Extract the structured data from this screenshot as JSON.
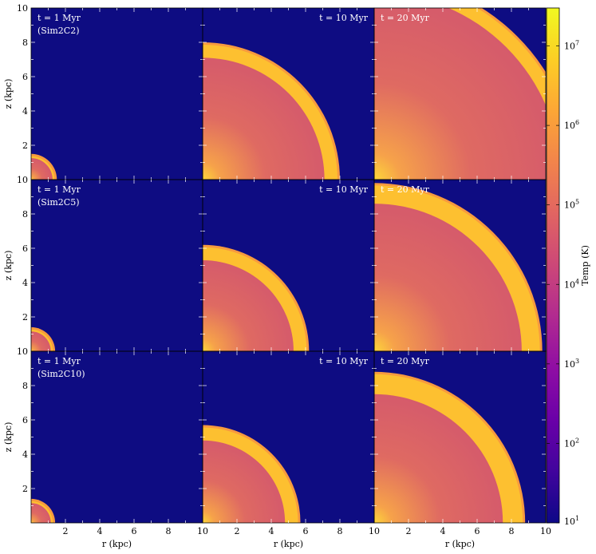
{
  "chart_data": {
    "type": "heatmap",
    "layout": "3x3 grid of panels",
    "panels": [
      {
        "row": 0,
        "col": 0,
        "time_label": "t = 1 Myr",
        "sim_label": "(Sim2C2)",
        "shell_radius_kpc": 1.5,
        "shell_thickness_kpc": 0.25
      },
      {
        "row": 0,
        "col": 1,
        "time_label": "t = 10 Myr",
        "sim_label": "",
        "shell_radius_kpc": 8.0,
        "shell_thickness_kpc": 0.9
      },
      {
        "row": 0,
        "col": 2,
        "time_label": "t = 20 Myr",
        "sim_label": "",
        "shell_radius_kpc": 11.8,
        "shell_thickness_kpc": 0.9
      },
      {
        "row": 1,
        "col": 0,
        "time_label": "t = 1 Myr",
        "sim_label": "(Sim2C5)",
        "shell_radius_kpc": 1.4,
        "shell_thickness_kpc": 0.25
      },
      {
        "row": 1,
        "col": 1,
        "time_label": "t = 10 Myr",
        "sim_label": "",
        "shell_radius_kpc": 6.2,
        "shell_thickness_kpc": 0.9
      },
      {
        "row": 1,
        "col": 2,
        "time_label": "t = 20 Myr",
        "sim_label": "",
        "shell_radius_kpc": 9.8,
        "shell_thickness_kpc": 1.2
      },
      {
        "row": 2,
        "col": 0,
        "time_label": "t = 1 Myr",
        "sim_label": "(Sim2C10)",
        "shell_radius_kpc": 1.4,
        "shell_thickness_kpc": 0.25
      },
      {
        "row": 2,
        "col": 1,
        "time_label": "t = 10 Myr",
        "sim_label": "",
        "shell_radius_kpc": 5.7,
        "shell_thickness_kpc": 0.9
      },
      {
        "row": 2,
        "col": 2,
        "time_label": "t = 20 Myr",
        "sim_label": "",
        "shell_radius_kpc": 8.8,
        "shell_thickness_kpc": 1.3
      }
    ],
    "xlabel": "r  (kpc)",
    "ylabel": "z  (kpc)",
    "xlim": [
      0,
      10
    ],
    "ylim": [
      0,
      10
    ],
    "x_ticks": [
      "2",
      "4",
      "6",
      "8",
      "10"
    ],
    "y_ticks": [
      "2",
      "4",
      "6",
      "8",
      "10"
    ],
    "colorbar": {
      "label": "Temp  (K)",
      "scale": "log",
      "range_K": [
        10,
        30000000
      ],
      "tick_labels": [
        {
          "base": "10",
          "exp": "1",
          "value": 10
        },
        {
          "base": "10",
          "exp": "2",
          "value": 100
        },
        {
          "base": "10",
          "exp": "3",
          "value": 1000
        },
        {
          "base": "10",
          "exp": "4",
          "value": 10000
        },
        {
          "base": "10",
          "exp": "5",
          "value": 100000
        },
        {
          "base": "10",
          "exp": "6",
          "value": 1000000
        },
        {
          "base": "10",
          "exp": "7",
          "value": 10000000
        }
      ],
      "colors": [
        "#0d0887",
        "#41049d",
        "#6a00a8",
        "#8f0da4",
        "#b12a90",
        "#cc4778",
        "#e16462",
        "#f2844b",
        "#fca636",
        "#fcce25",
        "#f0f921"
      ]
    },
    "colors": {
      "ambient": "#0e0c82",
      "bubble_interior": "#d2566e",
      "bubble_core": "#fdd63a",
      "shell": "#fdc030",
      "shell_edge": "#f79a3e"
    }
  }
}
